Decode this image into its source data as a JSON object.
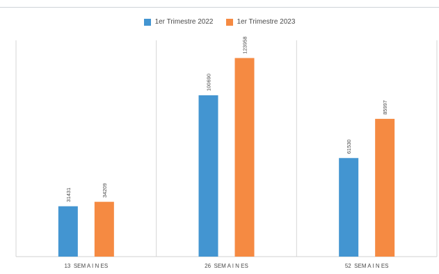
{
  "chart_data": {
    "type": "bar",
    "categories": [
      "13  SEM A I N ES",
      "26  SEM A I N ES",
      "52  SEM A I N ES"
    ],
    "series": [
      {
        "name": "1er Trimestre 2022",
        "values": [
          31431,
          100690,
          61530
        ],
        "data_labels": [
          "31431",
          "100690",
          "61530"
        ]
      },
      {
        "name": "1er Trimestre 2023",
        "values": [
          34209,
          123958,
          85997
        ],
        "data_labels": [
          "34209",
          "123958",
          "85997"
        ]
      }
    ],
    "ylim": [
      0,
      135000
    ],
    "grid": false,
    "legend_position": "top"
  },
  "colors": {
    "series_2022": "#4395d1",
    "series_2023": "#f58a42",
    "axis": "#d0d0d0",
    "separator": "#d6d6d6",
    "text": "#4a4a4a"
  }
}
